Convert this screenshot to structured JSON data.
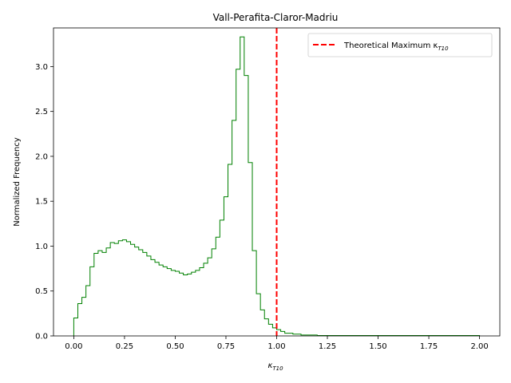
{
  "chart_data": {
    "type": "histogram",
    "title": "Vall-Perafita-Claror-Madriu",
    "xlabel": "κ",
    "xlabel_sub": "T10",
    "ylabel": "Normalized Frequency",
    "xlim": [
      -0.1,
      2.1
    ],
    "ylim": [
      0,
      3.43
    ],
    "xticks": [
      0.0,
      0.25,
      0.5,
      0.75,
      1.0,
      1.25,
      1.5,
      1.75,
      2.0
    ],
    "xtick_labels": [
      "0.00",
      "0.25",
      "0.50",
      "0.75",
      "1.00",
      "1.25",
      "1.50",
      "1.75",
      "2.00"
    ],
    "yticks": [
      0.0,
      0.5,
      1.0,
      1.5,
      2.0,
      2.5,
      3.0
    ],
    "ytick_labels": [
      "0.0",
      "0.5",
      "1.0",
      "1.5",
      "2.0",
      "2.5",
      "3.0"
    ],
    "grid": false,
    "bin_start": 0.0,
    "bin_width": 0.02,
    "values": [
      0.2,
      0.36,
      0.43,
      0.56,
      0.77,
      0.92,
      0.95,
      0.93,
      0.98,
      1.04,
      1.03,
      1.06,
      1.07,
      1.05,
      1.02,
      0.99,
      0.96,
      0.93,
      0.89,
      0.85,
      0.82,
      0.79,
      0.77,
      0.75,
      0.73,
      0.72,
      0.7,
      0.68,
      0.69,
      0.71,
      0.73,
      0.76,
      0.81,
      0.87,
      0.97,
      1.1,
      1.29,
      1.55,
      1.91,
      2.4,
      2.97,
      3.33,
      2.9,
      1.93,
      0.95,
      0.47,
      0.29,
      0.19,
      0.13,
      0.09,
      0.07,
      0.05,
      0.03,
      0.03,
      0.02,
      0.02,
      0.01,
      0.01,
      0.01,
      0.01,
      0.005,
      0.005,
      0.005,
      0.005,
      0.005,
      0.005,
      0.005,
      0.005,
      0.005,
      0.005,
      0.005,
      0.005,
      0.005,
      0.005,
      0.005,
      0.005,
      0.005,
      0.005,
      0.005,
      0.005,
      0.005,
      0.005,
      0.005,
      0.005,
      0.005,
      0.005,
      0.005,
      0.005,
      0.005,
      0.005,
      0.005,
      0.005,
      0.005,
      0.005,
      0.005,
      0.005,
      0.005,
      0.005,
      0.005,
      0.005
    ],
    "histogram_color": "#008000",
    "reference_line": {
      "x": 1.0,
      "color": "#ff0000",
      "style": "dashed",
      "label": "Theoretical Maximum κ",
      "label_sub": "T10"
    },
    "legend_position": "top-right"
  }
}
